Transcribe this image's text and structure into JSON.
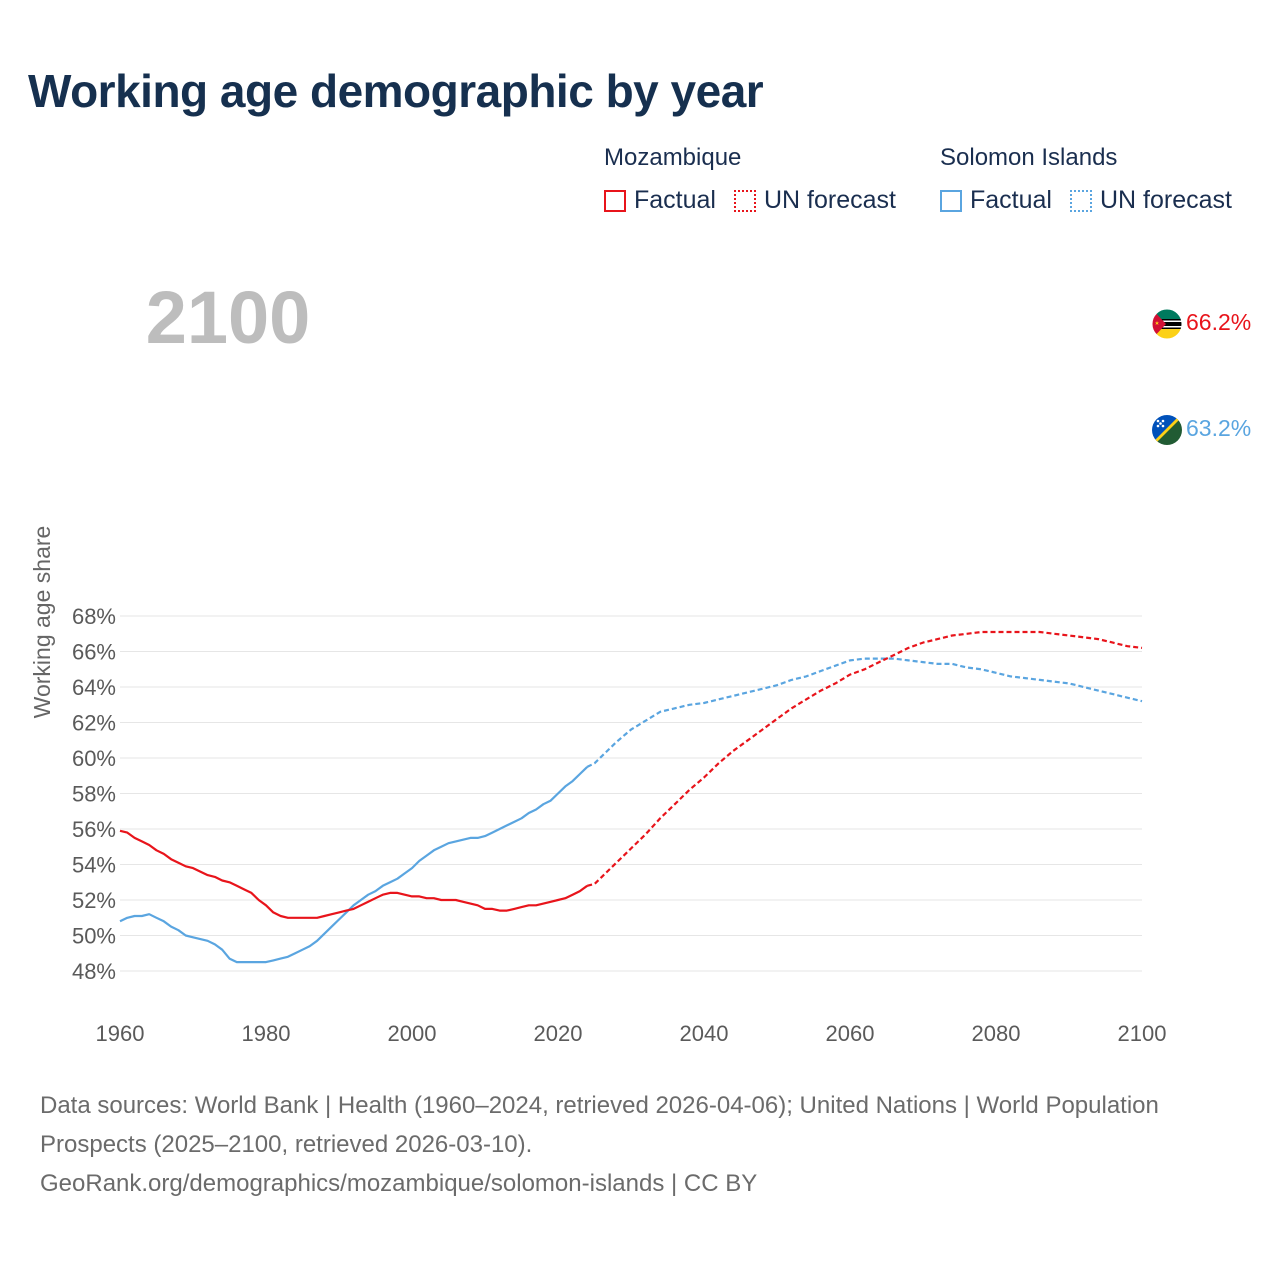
{
  "title": "Working age demographic by year",
  "legend": [
    {
      "country": "Mozambique",
      "factual_label": "Factual",
      "forecast_label": "UN forecast",
      "color": "#e8141b"
    },
    {
      "country": "Solomon Islands",
      "factual_label": "Factual",
      "forecast_label": "UN forecast",
      "color": "#5aa5e0"
    }
  ],
  "footer": {
    "sources": "Data sources: World Bank | Health (1960–2024, retrieved 2026-04-06); United Nations | World Population Prospects (2025–2100, retrieved 2026-03-10).",
    "link": "GeoRank.org/demographics/mozambique/solomon-islands | CC BY"
  },
  "chart_data": {
    "type": "line",
    "title": "Working age demographic by year",
    "xlabel": "",
    "ylabel": "Working age share",
    "xlim": [
      1960,
      2100
    ],
    "ylim": [
      47,
      69
    ],
    "xticks": [
      1960,
      1980,
      2000,
      2020,
      2040,
      2060,
      2080,
      2100
    ],
    "yticks": [
      48,
      50,
      52,
      54,
      56,
      58,
      60,
      62,
      64,
      66,
      68
    ],
    "ytick_labels": [
      "48%",
      "50%",
      "52%",
      "54%",
      "56%",
      "58%",
      "60%",
      "62%",
      "64%",
      "66%",
      "68%"
    ],
    "xtick_labels": [
      "1960",
      "1980",
      "2000",
      "2020",
      "2040",
      "2060",
      "2080",
      "2100"
    ],
    "current_year": "2100",
    "grid": true,
    "series": [
      {
        "name": "Mozambique",
        "color": "#e8141b",
        "flag": "mozambique-flag",
        "end_label": "66.2%",
        "factual": {
          "x": [
            1960,
            1961,
            1962,
            1963,
            1964,
            1965,
            1966,
            1967,
            1968,
            1969,
            1970,
            1971,
            1972,
            1973,
            1974,
            1975,
            1976,
            1977,
            1978,
            1979,
            1980,
            1981,
            1982,
            1983,
            1984,
            1985,
            1986,
            1987,
            1988,
            1989,
            1990,
            1991,
            1992,
            1993,
            1994,
            1995,
            1996,
            1997,
            1998,
            1999,
            2000,
            2001,
            2002,
            2003,
            2004,
            2005,
            2006,
            2007,
            2008,
            2009,
            2010,
            2011,
            2012,
            2013,
            2014,
            2015,
            2016,
            2017,
            2018,
            2019,
            2020,
            2021,
            2022,
            2023,
            2024
          ],
          "y": [
            55.9,
            55.8,
            55.5,
            55.3,
            55.1,
            54.8,
            54.6,
            54.3,
            54.1,
            53.9,
            53.8,
            53.6,
            53.4,
            53.3,
            53.1,
            53.0,
            52.8,
            52.6,
            52.4,
            52.0,
            51.7,
            51.3,
            51.1,
            51.0,
            51.0,
            51.0,
            51.0,
            51.0,
            51.1,
            51.2,
            51.3,
            51.4,
            51.5,
            51.7,
            51.9,
            52.1,
            52.3,
            52.4,
            52.4,
            52.3,
            52.2,
            52.2,
            52.1,
            52.1,
            52.0,
            52.0,
            52.0,
            51.9,
            51.8,
            51.7,
            51.5,
            51.5,
            51.4,
            51.4,
            51.5,
            51.6,
            51.7,
            51.7,
            51.8,
            51.9,
            52.0,
            52.1,
            52.3,
            52.5,
            52.8
          ]
        },
        "forecast": {
          "x": [
            2024,
            2025,
            2026,
            2028,
            2030,
            2032,
            2034,
            2036,
            2038,
            2040,
            2042,
            2044,
            2046,
            2048,
            2050,
            2052,
            2054,
            2056,
            2058,
            2060,
            2062,
            2064,
            2066,
            2068,
            2070,
            2072,
            2074,
            2076,
            2078,
            2080,
            2082,
            2084,
            2086,
            2088,
            2090,
            2092,
            2094,
            2096,
            2098,
            2100
          ],
          "y": [
            52.8,
            52.9,
            53.3,
            54.1,
            54.9,
            55.7,
            56.6,
            57.4,
            58.2,
            58.9,
            59.7,
            60.4,
            61.0,
            61.6,
            62.2,
            62.8,
            63.3,
            63.8,
            64.2,
            64.7,
            65.0,
            65.4,
            65.8,
            66.2,
            66.5,
            66.7,
            66.9,
            67.0,
            67.1,
            67.1,
            67.1,
            67.1,
            67.1,
            67.0,
            66.9,
            66.8,
            66.7,
            66.5,
            66.3,
            66.2
          ]
        }
      },
      {
        "name": "Solomon Islands",
        "color": "#5aa5e0",
        "flag": "solomon-islands-flag",
        "end_label": "63.2%",
        "factual": {
          "x": [
            1960,
            1961,
            1962,
            1963,
            1964,
            1965,
            1966,
            1967,
            1968,
            1969,
            1970,
            1971,
            1972,
            1973,
            1974,
            1975,
            1976,
            1977,
            1978,
            1979,
            1980,
            1981,
            1982,
            1983,
            1984,
            1985,
            1986,
            1987,
            1988,
            1989,
            1990,
            1991,
            1992,
            1993,
            1994,
            1995,
            1996,
            1997,
            1998,
            1999,
            2000,
            2001,
            2002,
            2003,
            2004,
            2005,
            2006,
            2007,
            2008,
            2009,
            2010,
            2011,
            2012,
            2013,
            2014,
            2015,
            2016,
            2017,
            2018,
            2019,
            2020,
            2021,
            2022,
            2023,
            2024
          ],
          "y": [
            50.8,
            51.0,
            51.1,
            51.1,
            51.2,
            51.0,
            50.8,
            50.5,
            50.3,
            50.0,
            49.9,
            49.8,
            49.7,
            49.5,
            49.2,
            48.7,
            48.5,
            48.5,
            48.5,
            48.5,
            48.5,
            48.6,
            48.7,
            48.8,
            49.0,
            49.2,
            49.4,
            49.7,
            50.1,
            50.5,
            50.9,
            51.3,
            51.7,
            52.0,
            52.3,
            52.5,
            52.8,
            53.0,
            53.2,
            53.5,
            53.8,
            54.2,
            54.5,
            54.8,
            55.0,
            55.2,
            55.3,
            55.4,
            55.5,
            55.5,
            55.6,
            55.8,
            56.0,
            56.2,
            56.4,
            56.6,
            56.9,
            57.1,
            57.4,
            57.6,
            58.0,
            58.4,
            58.7,
            59.1,
            59.5
          ]
        },
        "forecast": {
          "x": [
            2024,
            2025,
            2026,
            2028,
            2030,
            2032,
            2034,
            2036,
            2038,
            2040,
            2042,
            2044,
            2046,
            2048,
            2050,
            2052,
            2054,
            2056,
            2058,
            2060,
            2062,
            2064,
            2066,
            2068,
            2070,
            2072,
            2074,
            2076,
            2078,
            2080,
            2082,
            2084,
            2086,
            2088,
            2090,
            2092,
            2094,
            2096,
            2098,
            2100
          ],
          "y": [
            59.5,
            59.7,
            60.1,
            60.9,
            61.6,
            62.1,
            62.6,
            62.8,
            63.0,
            63.1,
            63.3,
            63.5,
            63.7,
            63.9,
            64.1,
            64.4,
            64.6,
            64.9,
            65.2,
            65.5,
            65.6,
            65.6,
            65.6,
            65.5,
            65.4,
            65.3,
            65.3,
            65.1,
            65.0,
            64.8,
            64.6,
            64.5,
            64.4,
            64.3,
            64.2,
            64.0,
            63.8,
            63.6,
            63.4,
            63.2
          ]
        }
      }
    ]
  }
}
